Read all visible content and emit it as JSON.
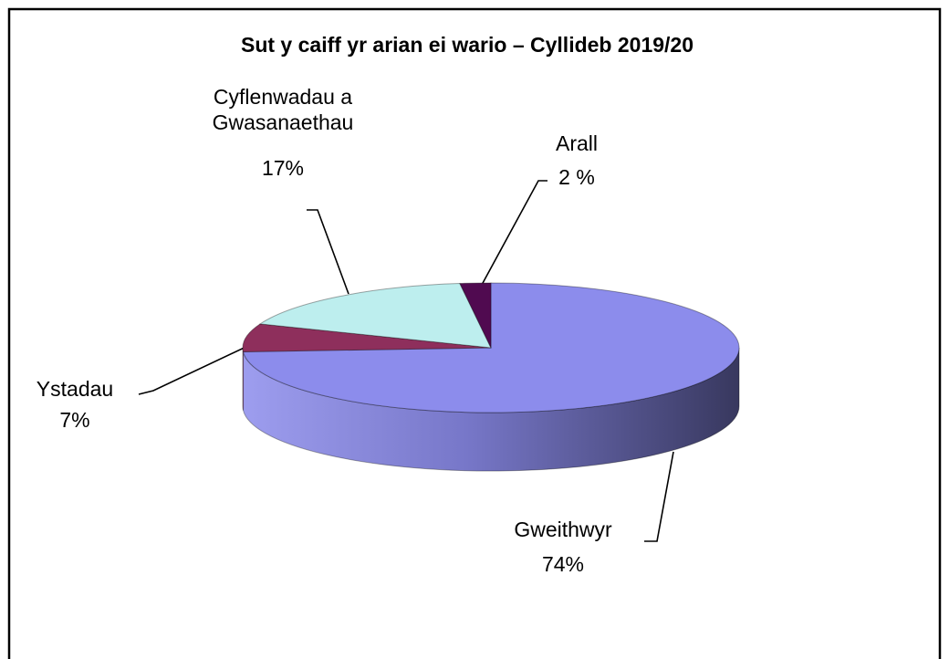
{
  "chart_data": {
    "type": "pie3d",
    "title": "Sut y caiff yr arian ei wario – Cyllideb 2019/20",
    "categories": [
      "Gweithwyr",
      "Ystadau",
      "Cyflenwadau a Gwasanaethau",
      "Arall"
    ],
    "values": [
      74,
      7,
      17,
      2
    ],
    "value_labels": [
      "74%",
      "7%",
      "17%",
      "2 %"
    ],
    "colors": [
      "#8c8cec",
      "#8e2f5c",
      "#bdeeee",
      "#500a50"
    ]
  }
}
